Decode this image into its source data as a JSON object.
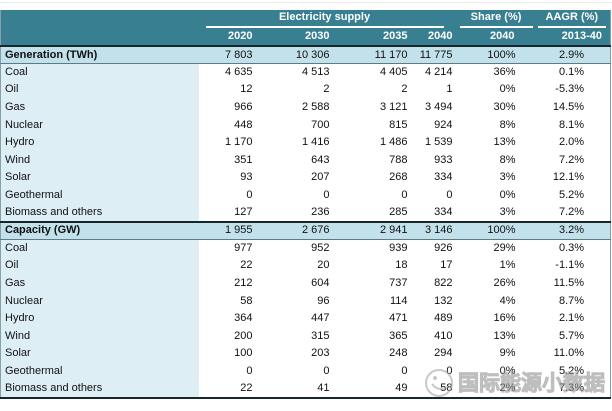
{
  "chart_data": {
    "type": "table",
    "header_groups": {
      "supply": "Electricity supply",
      "share": "Share (%)",
      "aagr": "AAGR (%)"
    },
    "year_columns": [
      "2020",
      "2030",
      "2035",
      "2040",
      "2040",
      "2013-40"
    ],
    "column_keys": [
      "2020",
      "2030",
      "2035",
      "2040",
      "share-2040",
      "aagr-2013-40"
    ],
    "rows": [
      {
        "label": "Generation (TWh)",
        "section": true,
        "values": [
          "7 803",
          "10 306",
          "11 170",
          "11 775",
          "100%",
          "2.9%"
        ]
      },
      {
        "label": "Coal",
        "section": false,
        "values": [
          "4 635",
          "4 513",
          "4 405",
          "4 214",
          "36%",
          "0.1%"
        ]
      },
      {
        "label": "Oil",
        "section": false,
        "values": [
          "12",
          "2",
          "2",
          "1",
          "0%",
          "-5.3%"
        ]
      },
      {
        "label": "Gas",
        "section": false,
        "values": [
          "966",
          "2 588",
          "3 121",
          "3 494",
          "30%",
          "14.5%"
        ]
      },
      {
        "label": "Nuclear",
        "section": false,
        "values": [
          "448",
          "700",
          "815",
          "924",
          "8%",
          "8.1%"
        ]
      },
      {
        "label": "Hydro",
        "section": false,
        "values": [
          "1 170",
          "1 416",
          "1 486",
          "1 539",
          "13%",
          "2.0%"
        ]
      },
      {
        "label": "Wind",
        "section": false,
        "values": [
          "351",
          "643",
          "788",
          "933",
          "8%",
          "7.2%"
        ]
      },
      {
        "label": "Solar",
        "section": false,
        "values": [
          "93",
          "207",
          "268",
          "334",
          "3%",
          "12.1%"
        ]
      },
      {
        "label": "Geothermal",
        "section": false,
        "values": [
          "0",
          "0",
          "0",
          "0",
          "0%",
          "5.2%"
        ]
      },
      {
        "label": "Biomass and others",
        "section": false,
        "values": [
          "127",
          "236",
          "285",
          "334",
          "3%",
          "7.2%"
        ]
      },
      {
        "label": "Capacity (GW)",
        "section": true,
        "values": [
          "1 955",
          "2 676",
          "2 941",
          "3 146",
          "100%",
          "3.2%"
        ]
      },
      {
        "label": "Coal",
        "section": false,
        "values": [
          "977",
          "952",
          "939",
          "926",
          "29%",
          "0.3%"
        ]
      },
      {
        "label": "Oil",
        "section": false,
        "values": [
          "22",
          "20",
          "18",
          "17",
          "1%",
          "-1.1%"
        ]
      },
      {
        "label": "Gas",
        "section": false,
        "values": [
          "212",
          "604",
          "737",
          "822",
          "26%",
          "11.5%"
        ]
      },
      {
        "label": "Nuclear",
        "section": false,
        "values": [
          "58",
          "96",
          "114",
          "132",
          "4%",
          "8.7%"
        ]
      },
      {
        "label": "Hydro",
        "section": false,
        "values": [
          "364",
          "447",
          "471",
          "489",
          "16%",
          "2.1%"
        ]
      },
      {
        "label": "Wind",
        "section": false,
        "values": [
          "200",
          "315",
          "365",
          "410",
          "13%",
          "5.7%"
        ]
      },
      {
        "label": "Solar",
        "section": false,
        "values": [
          "100",
          "203",
          "248",
          "294",
          "9%",
          "11.0%"
        ]
      },
      {
        "label": "Geothermal",
        "section": false,
        "values": [
          "0",
          "0",
          "0",
          "0",
          "0%",
          "5.2%"
        ]
      },
      {
        "label": "Biomass and others",
        "section": false,
        "values": [
          "22",
          "41",
          "49",
          "58",
          "2%",
          "7.3%"
        ]
      }
    ]
  },
  "watermark": {
    "text": "国际能源小数据",
    "logo": "smiley-crescent-logo-icon"
  },
  "colors": {
    "header_teal": "#377f91",
    "section_row_blue": "#c3e1ea",
    "label_column_blue": "#ddeef4",
    "dark_rule": "#17262b",
    "watermark_gray": "#bdbdbd"
  }
}
